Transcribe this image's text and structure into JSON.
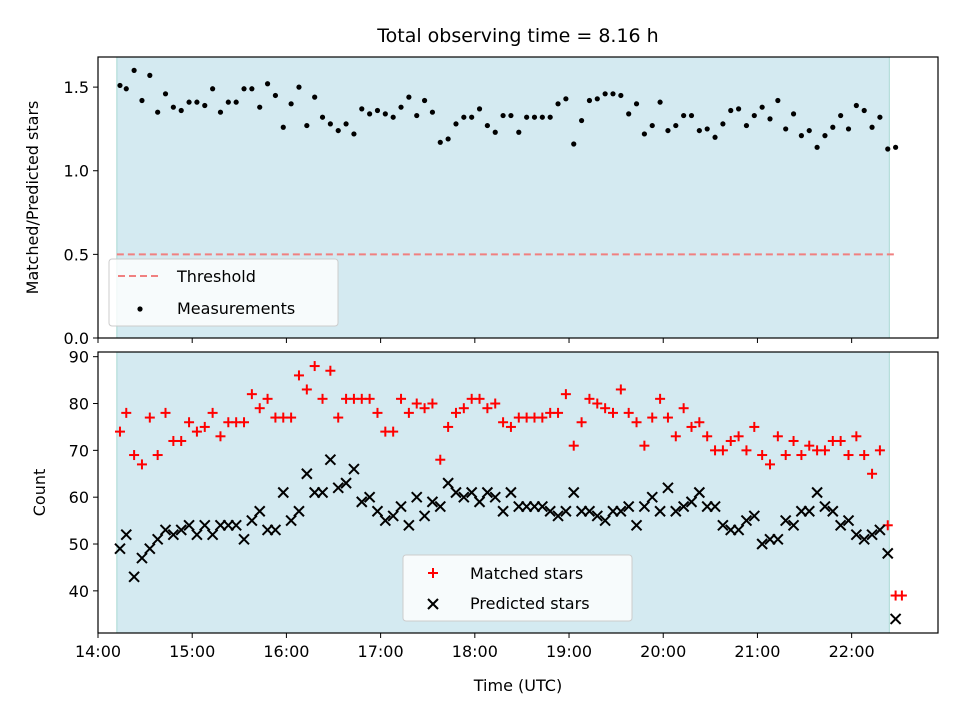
{
  "title": "Total observing time = 8.16 h",
  "colors": {
    "observing_span": "#d4eaf1",
    "threshold": "#f08080",
    "measurements": "#000000",
    "matched": "#ff0000",
    "predicted": "#000000"
  },
  "chart_data": [
    {
      "type": "scatter",
      "panel": "top",
      "xlabel": "",
      "ylabel": "Matched/Predicted stars",
      "xlim": [
        "14:00",
        "22:55"
      ],
      "ylim": [
        0,
        1.68
      ],
      "yticks": [
        0.0,
        0.5,
        1.0,
        1.5
      ],
      "ytick_labels": [
        "0.0",
        "0.5",
        "1.0",
        "1.5"
      ],
      "observing_span": [
        "14:12",
        "22:24"
      ],
      "threshold": {
        "name": "Threshold",
        "value": 0.5,
        "x_range": [
          "14:12",
          "22:27"
        ]
      },
      "legend": {
        "placement": "lower-left",
        "entries": [
          "Threshold",
          "Measurements"
        ]
      },
      "series": [
        {
          "name": "Measurements",
          "x": [
            "14:14",
            "14:18",
            "14:23",
            "14:28",
            "14:33",
            "14:38",
            "14:43",
            "14:48",
            "14:53",
            "14:58",
            "15:03",
            "15:08",
            "15:13",
            "15:18",
            "15:23",
            "15:28",
            "15:33",
            "15:38",
            "15:43",
            "15:48",
            "15:53",
            "15:58",
            "16:03",
            "16:08",
            "16:13",
            "16:18",
            "16:23",
            "16:28",
            "16:33",
            "16:38",
            "16:43",
            "16:48",
            "16:53",
            "16:58",
            "17:03",
            "17:08",
            "17:13",
            "17:18",
            "17:23",
            "17:28",
            "17:33",
            "17:38",
            "17:43",
            "17:48",
            "17:53",
            "17:58",
            "18:03",
            "18:08",
            "18:13",
            "18:18",
            "18:23",
            "18:28",
            "18:33",
            "18:38",
            "18:43",
            "18:48",
            "18:53",
            "18:58",
            "19:03",
            "19:08",
            "19:13",
            "19:18",
            "19:23",
            "19:28",
            "19:33",
            "19:38",
            "19:43",
            "19:48",
            "19:53",
            "19:58",
            "20:03",
            "20:08",
            "20:13",
            "20:18",
            "20:23",
            "20:28",
            "20:33",
            "20:38",
            "20:43",
            "20:48",
            "20:53",
            "20:58",
            "21:03",
            "21:08",
            "21:13",
            "21:18",
            "21:23",
            "21:28",
            "21:33",
            "21:38",
            "21:43",
            "21:48",
            "21:53",
            "21:58",
            "22:03",
            "22:08",
            "22:13",
            "22:18",
            "22:23",
            "22:28"
          ],
          "values": [
            1.51,
            1.49,
            1.6,
            1.42,
            1.57,
            1.35,
            1.46,
            1.38,
            1.36,
            1.41,
            1.41,
            1.39,
            1.49,
            1.35,
            1.41,
            1.41,
            1.49,
            1.49,
            1.38,
            1.52,
            1.45,
            1.26,
            1.4,
            1.5,
            1.27,
            1.44,
            1.32,
            1.28,
            1.24,
            1.28,
            1.22,
            1.37,
            1.34,
            1.36,
            1.34,
            1.32,
            1.38,
            1.44,
            1.33,
            1.42,
            1.35,
            1.17,
            1.19,
            1.28,
            1.32,
            1.32,
            1.37,
            1.27,
            1.23,
            1.33,
            1.33,
            1.23,
            1.32,
            1.32,
            1.32,
            1.32,
            1.4,
            1.43,
            1.16,
            1.3,
            1.42,
            1.43,
            1.46,
            1.46,
            1.45,
            1.34,
            1.4,
            1.22,
            1.27,
            1.41,
            1.24,
            1.27,
            1.33,
            1.33,
            1.24,
            1.25,
            1.2,
            1.28,
            1.36,
            1.37,
            1.27,
            1.33,
            1.38,
            1.31,
            1.42,
            1.25,
            1.34,
            1.21,
            1.24,
            1.14,
            1.21,
            1.26,
            1.33,
            1.25,
            1.39,
            1.36,
            1.26,
            1.32,
            1.13,
            1.14
          ]
        }
      ]
    },
    {
      "type": "scatter",
      "panel": "bottom",
      "xlabel": "Time (UTC)",
      "ylabel": "Count",
      "xlim": [
        "14:00",
        "22:55"
      ],
      "ylim": [
        31,
        91
      ],
      "yticks": [
        40,
        50,
        60,
        70,
        80,
        90
      ],
      "xticks": [
        "14:00",
        "15:00",
        "16:00",
        "17:00",
        "18:00",
        "19:00",
        "20:00",
        "21:00",
        "22:00"
      ],
      "observing_span": [
        "14:12",
        "22:24"
      ],
      "legend": {
        "placement": "lower-center",
        "entries": [
          "Matched stars",
          "Predicted stars"
        ]
      },
      "x": [
        "14:14",
        "14:18",
        "14:23",
        "14:28",
        "14:33",
        "14:38",
        "14:43",
        "14:48",
        "14:53",
        "14:58",
        "15:03",
        "15:08",
        "15:13",
        "15:18",
        "15:23",
        "15:28",
        "15:33",
        "15:38",
        "15:43",
        "15:48",
        "15:53",
        "15:58",
        "16:03",
        "16:08",
        "16:13",
        "16:18",
        "16:23",
        "16:28",
        "16:33",
        "16:38",
        "16:43",
        "16:48",
        "16:53",
        "16:58",
        "17:03",
        "17:08",
        "17:13",
        "17:18",
        "17:23",
        "17:28",
        "17:33",
        "17:38",
        "17:43",
        "17:48",
        "17:53",
        "17:58",
        "18:03",
        "18:08",
        "18:13",
        "18:18",
        "18:23",
        "18:28",
        "18:33",
        "18:38",
        "18:43",
        "18:48",
        "18:53",
        "18:58",
        "19:03",
        "19:08",
        "19:13",
        "19:18",
        "19:23",
        "19:28",
        "19:33",
        "19:38",
        "19:43",
        "19:48",
        "19:53",
        "19:58",
        "20:03",
        "20:08",
        "20:13",
        "20:18",
        "20:23",
        "20:28",
        "20:33",
        "20:38",
        "20:43",
        "20:48",
        "20:53",
        "20:58",
        "21:03",
        "21:08",
        "21:13",
        "21:18",
        "21:23",
        "21:28",
        "21:33",
        "21:38",
        "21:43",
        "21:48",
        "21:53",
        "21:58",
        "22:03",
        "22:08",
        "22:13",
        "22:18",
        "22:23",
        "22:28"
      ],
      "series": [
        {
          "name": "Matched stars",
          "marker": "+",
          "values": [
            74,
            78,
            69,
            67,
            77,
            69,
            78,
            72,
            72,
            76,
            74,
            75,
            78,
            73,
            76,
            76,
            76,
            82,
            79,
            81,
            77,
            77,
            77,
            86,
            83,
            88,
            81,
            87,
            77,
            81,
            81,
            81,
            81,
            78,
            74,
            74,
            81,
            78,
            80,
            79,
            80,
            68,
            75,
            78,
            79,
            81,
            81,
            79,
            80,
            76,
            75,
            77,
            77,
            77,
            77,
            78,
            78,
            82,
            71,
            76,
            81,
            80,
            79,
            78,
            83,
            78,
            76,
            71,
            77,
            81,
            77,
            73,
            79,
            75,
            76,
            73,
            70,
            70,
            72,
            73,
            70,
            75,
            69,
            67,
            73,
            69,
            72,
            69,
            71,
            70,
            70,
            72,
            72,
            69,
            73,
            69,
            65,
            70,
            54,
            39
          ],
          "extra_points": [
            {
              "x": "22:32",
              "value": 39
            }
          ]
        },
        {
          "name": "Predicted stars",
          "marker": "x",
          "values": [
            49,
            52,
            43,
            47,
            49,
            51,
            53,
            52,
            53,
            54,
            52,
            54,
            52,
            54,
            54,
            54,
            51,
            55,
            57,
            53,
            53,
            61,
            55,
            57,
            65,
            61,
            61,
            68,
            62,
            63,
            66,
            59,
            60,
            57,
            55,
            56,
            58,
            54,
            60,
            56,
            59,
            58,
            63,
            61,
            60,
            61,
            59,
            61,
            60,
            57,
            61,
            58,
            58,
            58,
            58,
            57,
            56,
            57,
            61,
            57,
            57,
            56,
            55,
            57,
            57,
            58,
            54,
            58,
            60,
            57,
            62,
            57,
            58,
            59,
            61,
            58,
            58,
            54,
            53,
            53,
            55,
            56,
            50,
            51,
            51,
            55,
            54,
            57,
            57,
            61,
            58,
            57,
            54,
            55,
            52,
            51,
            52,
            53,
            48,
            34
          ]
        }
      ]
    }
  ]
}
